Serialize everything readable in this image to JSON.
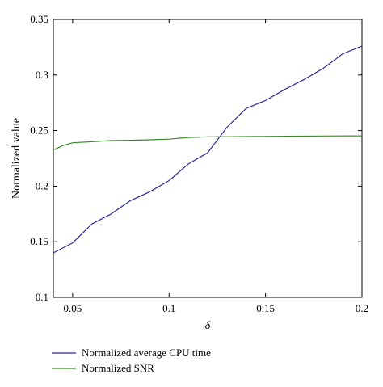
{
  "chart_data": {
    "type": "line",
    "xlabel": "δ",
    "ylabel": "Normalized value",
    "xlim": [
      0.04,
      0.2
    ],
    "ylim": [
      0.1,
      0.35
    ],
    "xticks": [
      0.05,
      0.1,
      0.15,
      0.2
    ],
    "yticks": [
      0.1,
      0.15,
      0.2,
      0.25,
      0.3,
      0.35
    ],
    "xtick_labels": [
      "0.05",
      "0.1",
      "0.15",
      "0.2"
    ],
    "ytick_labels": [
      "0.1",
      "0.15",
      "0.2",
      "0.25",
      "0.3",
      "0.35"
    ],
    "grid": false,
    "legend_position": "bottom-left, below plot",
    "series": [
      {
        "name": "Normalized average CPU time",
        "color": "#2b2b9a",
        "x": [
          0.04,
          0.05,
          0.06,
          0.07,
          0.08,
          0.09,
          0.1,
          0.11,
          0.12,
          0.13,
          0.14,
          0.15,
          0.16,
          0.17,
          0.18,
          0.19,
          0.2
        ],
        "y": [
          0.14,
          0.149,
          0.166,
          0.175,
          0.187,
          0.195,
          0.205,
          0.22,
          0.23,
          0.253,
          0.27,
          0.277,
          0.287,
          0.296,
          0.306,
          0.319,
          0.326
        ]
      },
      {
        "name": "Normalized SNR",
        "color": "#3a8a2a",
        "x": [
          0.04,
          0.045,
          0.05,
          0.06,
          0.07,
          0.08,
          0.09,
          0.1,
          0.11,
          0.12,
          0.13,
          0.14,
          0.15,
          0.16,
          0.17,
          0.18,
          0.19,
          0.2
        ],
        "y": [
          0.2325,
          0.2365,
          0.239,
          0.24,
          0.241,
          0.2413,
          0.2417,
          0.2423,
          0.2438,
          0.2443,
          0.2445,
          0.2446,
          0.2447,
          0.2449,
          0.245,
          0.2451,
          0.2452,
          0.2453
        ]
      }
    ]
  }
}
